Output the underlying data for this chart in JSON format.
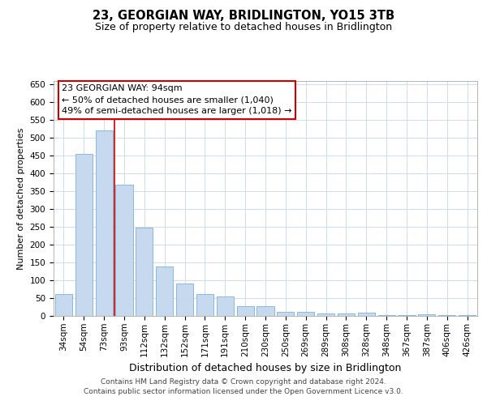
{
  "title": "23, GEORGIAN WAY, BRIDLINGTON, YO15 3TB",
  "subtitle": "Size of property relative to detached houses in Bridlington",
  "xlabel": "Distribution of detached houses by size in Bridlington",
  "ylabel": "Number of detached properties",
  "categories": [
    "34sqm",
    "54sqm",
    "73sqm",
    "93sqm",
    "112sqm",
    "132sqm",
    "152sqm",
    "171sqm",
    "191sqm",
    "210sqm",
    "230sqm",
    "250sqm",
    "269sqm",
    "289sqm",
    "308sqm",
    "328sqm",
    "348sqm",
    "367sqm",
    "387sqm",
    "406sqm",
    "426sqm"
  ],
  "values": [
    62,
    456,
    521,
    368,
    248,
    138,
    92,
    62,
    55,
    27,
    27,
    12,
    12,
    7,
    7,
    10,
    3,
    3,
    5,
    3,
    3
  ],
  "bar_color": "#c6d9ee",
  "bar_edge_color": "#7fb0d4",
  "red_line_index": 3,
  "red_line_color": "#cc0000",
  "annotation_line1": "23 GEORGIAN WAY: 94sqm",
  "annotation_line2": "← 50% of detached houses are smaller (1,040)",
  "annotation_line3": "49% of semi-detached houses are larger (1,018) →",
  "ylim": [
    0,
    660
  ],
  "yticks": [
    0,
    50,
    100,
    150,
    200,
    250,
    300,
    350,
    400,
    450,
    500,
    550,
    600,
    650
  ],
  "background_color": "#ffffff",
  "grid_color": "#c8d8e8",
  "footer_text": "Contains HM Land Registry data © Crown copyright and database right 2024.\nContains public sector information licensed under the Open Government Licence v3.0.",
  "title_fontsize": 10.5,
  "subtitle_fontsize": 9,
  "xlabel_fontsize": 9,
  "ylabel_fontsize": 8,
  "tick_fontsize": 7.5,
  "annotation_fontsize": 8,
  "footer_fontsize": 6.5
}
